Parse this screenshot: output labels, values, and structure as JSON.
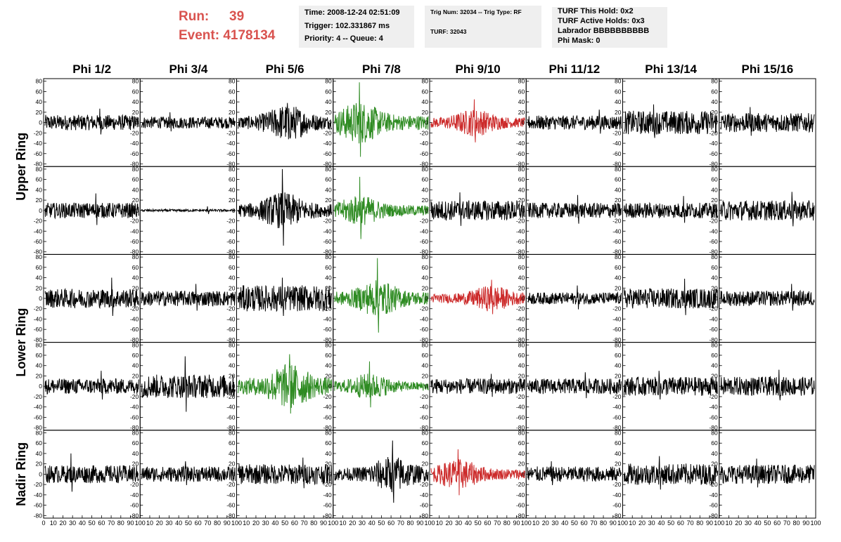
{
  "header": {
    "run_label": "Run:",
    "run_value": "39",
    "event_label": "Event:",
    "event_value": "4178134",
    "time": "Time: 2008-12-24 02:51:09",
    "trigger": "Trigger: 102.331867 ms",
    "priority": "Priority: 4 -- Queue: 4",
    "trig_num": "Trig Num: 32034 -- Trig Type: RF",
    "turf": "TURF: 32043",
    "turf_hold": "TURF This Hold: 0x2",
    "turf_active": "TURF Active Holds: 0x3",
    "labrador": "Labrador BBBBBBBBBB",
    "phi_mask": "Phi Mask: 0"
  },
  "chart_data": {
    "type": "line",
    "columns": [
      "Phi 1/2",
      "Phi 3/4",
      "Phi 5/6",
      "Phi 7/8",
      "Phi 9/10",
      "Phi 11/12",
      "Phi 13/14",
      "Phi 15/16"
    ],
    "row_labels": [
      {
        "label": "Upper Ring",
        "rows": [
          0,
          1
        ]
      },
      {
        "label": "Lower Ring",
        "rows": [
          2,
          3
        ]
      },
      {
        "label": "Nadir Ring",
        "rows": [
          4
        ]
      }
    ],
    "ylim": [
      -85,
      85
    ],
    "yticks": [
      -80,
      -60,
      -40,
      -20,
      0,
      20,
      40,
      60,
      80
    ],
    "xlim": [
      0,
      100
    ],
    "xticks": [
      0,
      10,
      20,
      30,
      40,
      50,
      60,
      70,
      80,
      90,
      100
    ],
    "colors": {
      "normal": "#000000",
      "green": "#2e8b22",
      "red": "#cc2a2a"
    },
    "panels": [
      [
        {
          "color": "normal",
          "amp": 13,
          "peak": 27
        },
        {
          "color": "normal",
          "amp": 10,
          "peak": 20
        },
        {
          "color": "normal",
          "amp": 24,
          "peak": 38
        },
        {
          "color": "green",
          "amp": 28,
          "peak": 78
        },
        {
          "color": "red",
          "amp": 18,
          "peak": 45
        },
        {
          "color": "normal",
          "amp": 12,
          "peak": 25
        },
        {
          "color": "normal",
          "amp": 20,
          "peak": 35
        },
        {
          "color": "normal",
          "amp": 16,
          "peak": 30
        }
      ],
      [
        {
          "color": "normal",
          "amp": 13,
          "peak": 33
        },
        {
          "color": "normal",
          "amp": 2,
          "peak": 8
        },
        {
          "color": "normal",
          "amp": 24,
          "peak": 80
        },
        {
          "color": "green",
          "amp": 20,
          "peak": 65
        },
        {
          "color": "normal",
          "amp": 17,
          "peak": 35
        },
        {
          "color": "normal",
          "amp": 13,
          "peak": 30
        },
        {
          "color": "normal",
          "amp": 13,
          "peak": 28
        },
        {
          "color": "normal",
          "amp": 17,
          "peak": 36
        }
      ],
      [
        {
          "color": "normal",
          "amp": 16,
          "peak": 40
        },
        {
          "color": "normal",
          "amp": 13,
          "peak": 28
        },
        {
          "color": "normal",
          "amp": 22,
          "peak": 40
        },
        {
          "color": "green",
          "amp": 24,
          "peak": 78
        },
        {
          "color": "red",
          "amp": 17,
          "peak": 36
        },
        {
          "color": "normal",
          "amp": 10,
          "peak": 25
        },
        {
          "color": "normal",
          "amp": 17,
          "peak": 38
        },
        {
          "color": "normal",
          "amp": 13,
          "peak": 28
        }
      ],
      [
        {
          "color": "normal",
          "amp": 13,
          "peak": 30
        },
        {
          "color": "normal",
          "amp": 20,
          "peak": 58
        },
        {
          "color": "green",
          "amp": 30,
          "peak": 62
        },
        {
          "color": "green",
          "amp": 17,
          "peak": 48
        },
        {
          "color": "normal",
          "amp": 13,
          "peak": 24
        },
        {
          "color": "normal",
          "amp": 13,
          "peak": 27
        },
        {
          "color": "normal",
          "amp": 16,
          "peak": 30
        },
        {
          "color": "normal",
          "amp": 16,
          "peak": 32
        }
      ],
      [
        {
          "color": "normal",
          "amp": 15,
          "peak": 40
        },
        {
          "color": "normal",
          "amp": 13,
          "peak": 25
        },
        {
          "color": "normal",
          "amp": 17,
          "peak": 32
        },
        {
          "color": "normal",
          "amp": 24,
          "peak": 65
        },
        {
          "color": "red",
          "amp": 20,
          "peak": 48
        },
        {
          "color": "normal",
          "amp": 13,
          "peak": 25
        },
        {
          "color": "normal",
          "amp": 18,
          "peak": 35
        },
        {
          "color": "normal",
          "amp": 16,
          "peak": 30
        }
      ]
    ]
  }
}
